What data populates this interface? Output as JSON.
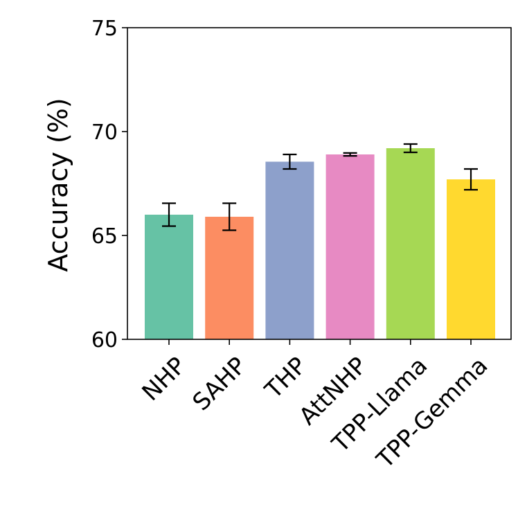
{
  "chart_data": {
    "type": "bar",
    "title": "",
    "xlabel": "",
    "ylabel": "Accuracy (%)",
    "ylim": [
      60,
      75
    ],
    "yticks": [
      60,
      65,
      70,
      75
    ],
    "grid": false,
    "legend": "none",
    "categories": [
      "NHP",
      "SAHP",
      "THP",
      "AttNHP",
      "TPP-Llama",
      "TPP-Gemma"
    ],
    "values": [
      66.0,
      65.9,
      68.55,
      68.9,
      69.2,
      67.7
    ],
    "errors": [
      0.55,
      0.65,
      0.35,
      0.07,
      0.2,
      0.5
    ],
    "colors": [
      "#66c2a5",
      "#fc8d62",
      "#8da0cb",
      "#e78ac3",
      "#a6d854",
      "#ffd92f"
    ]
  }
}
